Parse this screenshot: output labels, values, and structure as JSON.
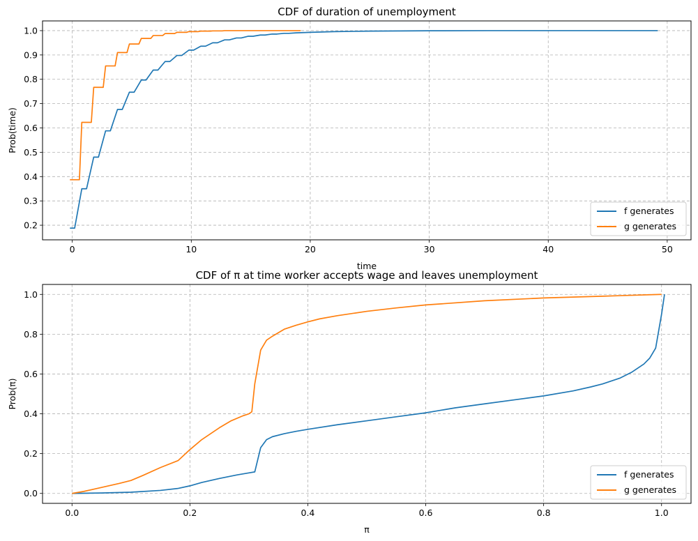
{
  "chart_data": [
    {
      "type": "line",
      "title": "CDF of duration of unemployment",
      "xlabel": "time",
      "ylabel": "Prob(time)",
      "xlim": [
        -2.5,
        52
      ],
      "ylim": [
        0.14,
        1.04
      ],
      "xticks": [
        0,
        10,
        20,
        30,
        40,
        50
      ],
      "xtick_labels": [
        "0",
        "10",
        "20",
        "30",
        "40",
        "50"
      ],
      "yticks": [
        0.2,
        0.3,
        0.4,
        0.5,
        0.6,
        0.7,
        0.8,
        0.9,
        1.0
      ],
      "ytick_labels": [
        "0.2",
        "0.3",
        "0.4",
        "0.5",
        "0.6",
        "0.7",
        "0.8",
        "0.9",
        "1.0"
      ],
      "grid": true,
      "legend_position": "lower right",
      "series": [
        {
          "name": "f generates",
          "color": "#1f77b4",
          "x": [
            -0.2,
            0.2,
            0.8,
            1.2,
            1.8,
            2.2,
            2.8,
            3.2,
            3.8,
            4.2,
            4.8,
            5.2,
            5.8,
            6.2,
            6.8,
            7.2,
            7.8,
            8.2,
            8.8,
            9.2,
            9.8,
            10.2,
            10.8,
            11.2,
            11.8,
            12.2,
            12.8,
            13.2,
            13.8,
            14.2,
            14.8,
            15.2,
            15.8,
            16.2,
            16.8,
            17.2,
            17.8,
            18.2,
            18.8,
            20,
            22,
            25,
            30,
            35,
            40,
            45,
            49.2
          ],
          "y": [
            0.188,
            0.188,
            0.35,
            0.35,
            0.48,
            0.48,
            0.588,
            0.588,
            0.676,
            0.676,
            0.747,
            0.747,
            0.797,
            0.797,
            0.838,
            0.838,
            0.873,
            0.873,
            0.898,
            0.898,
            0.92,
            0.92,
            0.936,
            0.936,
            0.95,
            0.95,
            0.962,
            0.962,
            0.97,
            0.97,
            0.977,
            0.977,
            0.982,
            0.982,
            0.986,
            0.986,
            0.989,
            0.989,
            0.991,
            0.993,
            0.996,
            0.998,
            0.9995,
            1.0,
            1.0,
            1.0,
            1.0
          ]
        },
        {
          "name": "g generates",
          "color": "#ff7f0e",
          "x": [
            -0.2,
            0.6,
            0.8,
            1.6,
            1.8,
            2.6,
            2.8,
            3.6,
            3.8,
            4.6,
            4.8,
            5.6,
            5.8,
            6.6,
            6.8,
            7.6,
            7.8,
            8.6,
            8.8,
            9.6,
            9.8,
            10.6,
            10.8,
            11.6,
            11.8,
            12.6,
            12.8,
            14,
            15,
            16,
            17,
            18,
            19.2
          ],
          "y": [
            0.387,
            0.387,
            0.623,
            0.623,
            0.767,
            0.767,
            0.855,
            0.855,
            0.91,
            0.91,
            0.945,
            0.945,
            0.968,
            0.968,
            0.98,
            0.98,
            0.988,
            0.988,
            0.993,
            0.993,
            0.996,
            0.996,
            0.998,
            0.998,
            0.999,
            0.999,
            1.0,
            1.0,
            1.0,
            1.0,
            1.0,
            1.0,
            1.0
          ]
        }
      ]
    },
    {
      "type": "line",
      "title": "CDF of π at time worker accepts wage and leaves unemployment",
      "xlabel": "π",
      "ylabel": "Prob(π)",
      "xlim": [
        -0.05,
        1.05
      ],
      "ylim": [
        -0.05,
        1.05
      ],
      "xticks": [
        0.0,
        0.2,
        0.4,
        0.6,
        0.8,
        1.0
      ],
      "xtick_labels": [
        "0.0",
        "0.2",
        "0.4",
        "0.6",
        "0.8",
        "1.0"
      ],
      "yticks": [
        0.0,
        0.2,
        0.4,
        0.6,
        0.8,
        1.0
      ],
      "ytick_labels": [
        "0.0",
        "0.2",
        "0.4",
        "0.6",
        "0.8",
        "1.0"
      ],
      "grid": true,
      "legend_position": "lower right",
      "series": [
        {
          "name": "f generates",
          "color": "#1f77b4",
          "x": [
            0.0,
            0.05,
            0.1,
            0.15,
            0.18,
            0.2,
            0.22,
            0.25,
            0.28,
            0.3,
            0.31,
            0.32,
            0.33,
            0.34,
            0.36,
            0.38,
            0.4,
            0.45,
            0.5,
            0.55,
            0.6,
            0.65,
            0.7,
            0.75,
            0.8,
            0.85,
            0.88,
            0.9,
            0.93,
            0.95,
            0.97,
            0.98,
            0.99,
            1.0,
            1.005
          ],
          "y": [
            0.0,
            0.002,
            0.006,
            0.015,
            0.025,
            0.038,
            0.055,
            0.075,
            0.093,
            0.103,
            0.108,
            0.23,
            0.27,
            0.285,
            0.3,
            0.312,
            0.322,
            0.345,
            0.365,
            0.385,
            0.405,
            0.43,
            0.45,
            0.47,
            0.49,
            0.515,
            0.535,
            0.55,
            0.58,
            0.61,
            0.65,
            0.68,
            0.73,
            0.9,
            1.0
          ]
        },
        {
          "name": "g generates",
          "color": "#ff7f0e",
          "x": [
            0.0,
            0.02,
            0.05,
            0.08,
            0.1,
            0.12,
            0.15,
            0.18,
            0.2,
            0.22,
            0.25,
            0.27,
            0.29,
            0.3,
            0.305,
            0.31,
            0.32,
            0.33,
            0.34,
            0.36,
            0.38,
            0.4,
            0.42,
            0.45,
            0.5,
            0.55,
            0.6,
            0.7,
            0.8,
            0.9,
            1.0
          ],
          "y": [
            0.0,
            0.01,
            0.03,
            0.05,
            0.065,
            0.09,
            0.13,
            0.165,
            0.22,
            0.27,
            0.33,
            0.365,
            0.39,
            0.4,
            0.41,
            0.55,
            0.72,
            0.77,
            0.79,
            0.825,
            0.845,
            0.862,
            0.877,
            0.893,
            0.915,
            0.932,
            0.947,
            0.968,
            0.982,
            0.991,
            1.0
          ]
        }
      ]
    }
  ]
}
